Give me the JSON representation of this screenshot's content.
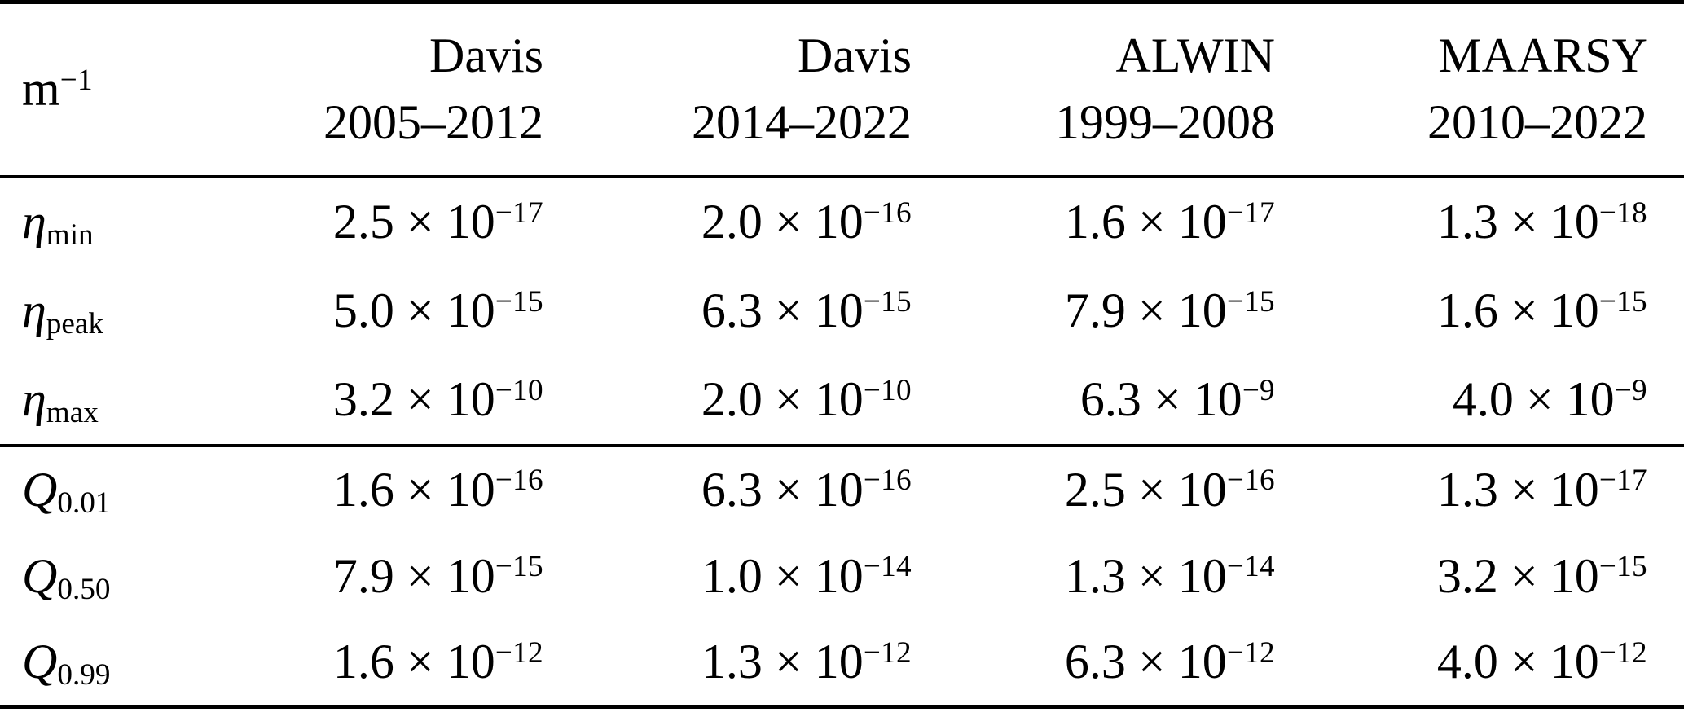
{
  "unit": {
    "base": "m",
    "exp": "−1"
  },
  "columns": [
    {
      "name": "Davis",
      "years": "2005–2012"
    },
    {
      "name": "Davis",
      "years": "2014–2022"
    },
    {
      "name": "ALWIN",
      "years": "1999–2008"
    },
    {
      "name": "MAARSY",
      "years": "2010–2022"
    }
  ],
  "notation": {
    "times_ten": " × 10"
  },
  "eta_rows": [
    {
      "label": {
        "base": "η",
        "sub": "min"
      },
      "values": [
        {
          "m": "2.5",
          "e": "−17"
        },
        {
          "m": "2.0",
          "e": "−16"
        },
        {
          "m": "1.6",
          "e": "−17"
        },
        {
          "m": "1.3",
          "e": "−18"
        }
      ]
    },
    {
      "label": {
        "base": "η",
        "sub": "peak"
      },
      "values": [
        {
          "m": "5.0",
          "e": "−15"
        },
        {
          "m": "6.3",
          "e": "−15"
        },
        {
          "m": "7.9",
          "e": "−15"
        },
        {
          "m": "1.6",
          "e": "−15"
        }
      ]
    },
    {
      "label": {
        "base": "η",
        "sub": "max"
      },
      "values": [
        {
          "m": "3.2",
          "e": "−10"
        },
        {
          "m": "2.0",
          "e": "−10"
        },
        {
          "m": "6.3",
          "e": "−9"
        },
        {
          "m": "4.0",
          "e": "−9"
        }
      ]
    }
  ],
  "q_rows": [
    {
      "label": {
        "base": "Q",
        "sub": "0.01"
      },
      "values": [
        {
          "m": "1.6",
          "e": "−16"
        },
        {
          "m": "6.3",
          "e": "−16"
        },
        {
          "m": "2.5",
          "e": "−16"
        },
        {
          "m": "1.3",
          "e": "−17"
        }
      ]
    },
    {
      "label": {
        "base": "Q",
        "sub": "0.50"
      },
      "values": [
        {
          "m": "7.9",
          "e": "−15"
        },
        {
          "m": "1.0",
          "e": "−14"
        },
        {
          "m": "1.3",
          "e": "−14"
        },
        {
          "m": "3.2",
          "e": "−15"
        }
      ]
    },
    {
      "label": {
        "base": "Q",
        "sub": "0.99"
      },
      "values": [
        {
          "m": "1.6",
          "e": "−12"
        },
        {
          "m": "1.3",
          "e": "−12"
        },
        {
          "m": "6.3",
          "e": "−12"
        },
        {
          "m": "4.0",
          "e": "−12"
        }
      ]
    }
  ],
  "chart_data": {
    "type": "table",
    "title": "",
    "unit": "m⁻¹",
    "columns": [
      "Davis 2005–2012",
      "Davis 2014–2022",
      "ALWIN 1999–2008",
      "MAARSY 2010–2022"
    ],
    "rows": [
      {
        "label": "eta_min",
        "values": [
          2.5e-17,
          2e-16,
          1.6e-17,
          1.3e-18
        ]
      },
      {
        "label": "eta_peak",
        "values": [
          5e-15,
          6.3e-15,
          7.9e-15,
          1.6e-15
        ]
      },
      {
        "label": "eta_max",
        "values": [
          3.2e-10,
          2e-10,
          6.3e-09,
          4e-09
        ]
      },
      {
        "label": "Q_0.01",
        "values": [
          1.6e-16,
          6.3e-16,
          2.5e-16,
          1.3e-17
        ]
      },
      {
        "label": "Q_0.50",
        "values": [
          7.9e-15,
          1e-14,
          1.3e-14,
          3.2e-15
        ]
      },
      {
        "label": "Q_0.99",
        "values": [
          1.6e-12,
          1.3e-12,
          6.3e-12,
          4e-12
        ]
      }
    ]
  }
}
